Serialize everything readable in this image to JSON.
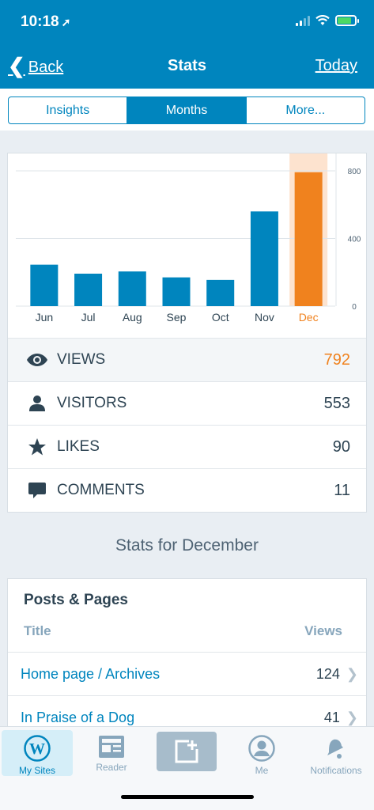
{
  "status": {
    "time": "10:18",
    "location_arrow": "➚"
  },
  "nav": {
    "back_label": "Back",
    "back_chevron": "❮",
    "title": "Stats",
    "right_label": "Today"
  },
  "segments": [
    {
      "label": "Insights",
      "active": false
    },
    {
      "label": "Months",
      "active": true
    },
    {
      "label": "More...",
      "active": false
    }
  ],
  "chart_data": {
    "type": "bar",
    "categories": [
      "Jun",
      "Jul",
      "Aug",
      "Sep",
      "Oct",
      "Nov",
      "Dec"
    ],
    "values": [
      245,
      192,
      205,
      170,
      155,
      560,
      792
    ],
    "highlighted_index": 6,
    "yticks": [
      0,
      400,
      800
    ],
    "ylim": [
      0,
      800
    ],
    "bar_color": "#0085be",
    "highlight_color": "#f0821e",
    "highlight_band_color": "#fde3cf",
    "grid": true
  },
  "stats": [
    {
      "icon": "eye-icon",
      "label": "VIEWS",
      "value": "792",
      "selected": true
    },
    {
      "icon": "person-icon",
      "label": "VISITORS",
      "value": "553",
      "selected": false
    },
    {
      "icon": "star-icon",
      "label": "LIKES",
      "value": "90",
      "selected": false
    },
    {
      "icon": "comment-icon",
      "label": "COMMENTS",
      "value": "11",
      "selected": false
    }
  ],
  "section_title": "Stats for December",
  "posts": {
    "heading": "Posts & Pages",
    "col_title": "Title",
    "col_views": "Views",
    "rows": [
      {
        "title": "Home page / Archives",
        "views": "124"
      },
      {
        "title": "In Praise of a Dog",
        "views": "41"
      }
    ]
  },
  "tabbar": {
    "my_sites": "My Sites",
    "reader": "Reader",
    "me": "Me",
    "notifications": "Notifications"
  },
  "colors": {
    "brand": "#0085be",
    "accent": "#f0821e"
  }
}
